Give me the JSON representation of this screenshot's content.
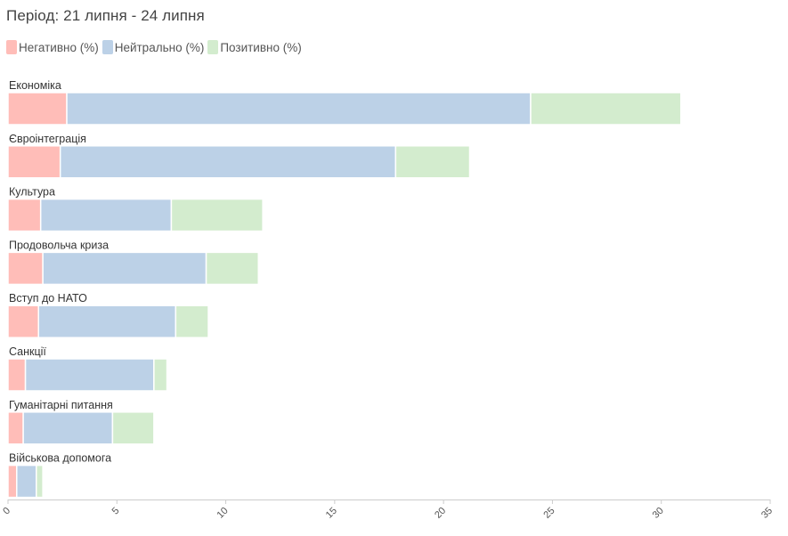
{
  "title": "Період: 21 липня - 24 липня",
  "colors": {
    "negative": "#ffbdb8",
    "neutral": "#bcd1e7",
    "positive": "#d3ecce",
    "axis": "#cccccc"
  },
  "chart_data": {
    "type": "bar",
    "orientation": "horizontal",
    "stacked": true,
    "categories": [
      "Економіка",
      "Євроінтеграція",
      "Культура",
      "Продовольча криза",
      "Вступ до НАТО",
      "Санкції",
      "Гуманітарні питання",
      "Військова допомога"
    ],
    "series": [
      {
        "name": "Негативно (%)",
        "color": "#ffbdb8",
        "values": [
          2.7,
          2.4,
          1.5,
          1.6,
          1.4,
          0.8,
          0.7,
          0.4
        ]
      },
      {
        "name": "Нейтрально (%)",
        "color": "#bcd1e7",
        "values": [
          21.3,
          15.4,
          6.0,
          7.5,
          6.3,
          5.9,
          4.1,
          0.9
        ]
      },
      {
        "name": "Позитивно (%)",
        "color": "#d3ecce",
        "values": [
          6.9,
          3.4,
          4.2,
          2.4,
          1.5,
          0.6,
          1.9,
          0.3
        ]
      }
    ],
    "xlim": [
      0,
      35
    ],
    "xticks": [
      "0",
      "5",
      "10",
      "15",
      "20",
      "25",
      "30",
      "35"
    ],
    "legend_position": "top-left",
    "grid": false
  }
}
